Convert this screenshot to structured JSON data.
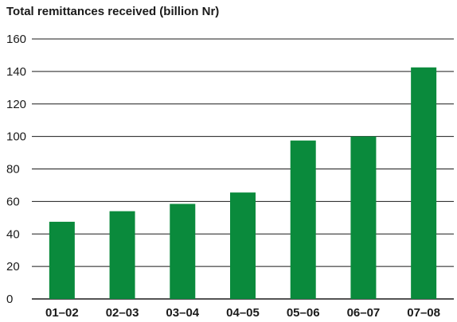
{
  "chart_data": {
    "type": "bar",
    "title": "Total remittances received (billion Nr)",
    "xlabel": "",
    "ylabel": "",
    "categories": [
      "01–02",
      "02–03",
      "03–04",
      "04–05",
      "05–06",
      "06–07",
      "07–08"
    ],
    "values": [
      47.5,
      54,
      58.5,
      65.5,
      97.5,
      100,
      142.5
    ],
    "ylim": [
      0,
      160
    ],
    "yticks": [
      0,
      20,
      40,
      60,
      80,
      100,
      120,
      140,
      160
    ],
    "grid": true,
    "legend": "none",
    "bar_color": "#0a8a3c",
    "grid_color": "#1a1a1a"
  }
}
